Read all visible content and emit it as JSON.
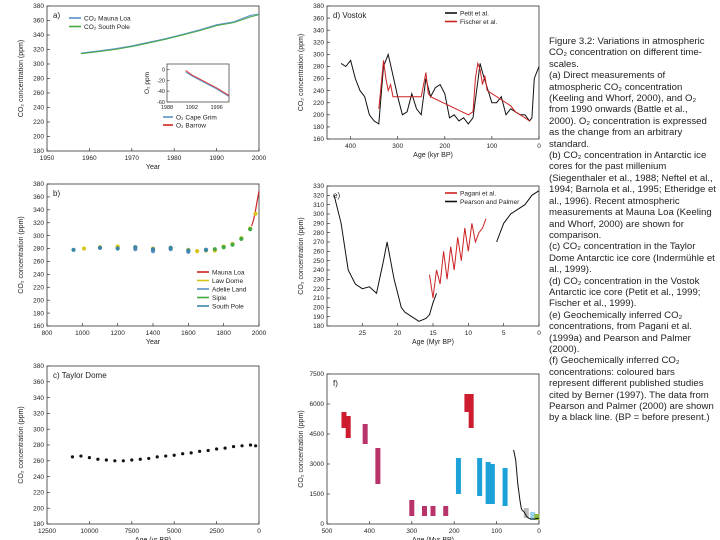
{
  "caption": [
    "Figure 3.2: Variations in atmospheric CO₂ concentration on different time-scales.",
    "(a) Direct measurements of atmospheric CO₂ concentration (Keeling and Whorf, 2000), and O₂ from 1990 onwards (Battle et al., 2000). O₂ concentration is expressed as the change from an arbitrary standard.",
    "(b) CO₂ concentration in Antarctic ice cores for the past millenium (Siegenthaler et al., 1988; Neftel et al., 1994; Barnola et al., 1995; Etheridge et al., 1996). Recent atmospheric measurements at Mauna Loa (Keeling and Whorf, 2000) are shown for comparison.",
    "(c) CO₂ concentration in the Taylor Dome Antarctic ice core (Indermühle et al., 1999).",
    "(d) CO₂ concentration in the Vostok Antarctic ice core (Petit et al., 1999; Fischer et al., 1999).",
    "(e) Geochemically inferred CO₂ concentrations, from Pagani et al. (1999a) and Pearson and Palmer (2000).",
    "(f) Geochemically inferred CO₂ concentrations: coloured bars represent different published studies cited by Berner (1997). The data from Pearson and Palmer (2000) are shown by a black line. (BP = before present.)"
  ],
  "chart_data": [
    {
      "panel": "a",
      "type": "line",
      "ylabel": "CO₂ concentration (ppm)",
      "xlabel": "Year",
      "xlim": [
        1950,
        2000
      ],
      "ylim": [
        180,
        380
      ],
      "xticks": [
        1950,
        1960,
        1970,
        1980,
        1990,
        2000
      ],
      "yticks": [
        180,
        200,
        220,
        240,
        260,
        280,
        300,
        320,
        340,
        360,
        380
      ],
      "series": [
        {
          "name": "CO₂ Mauna Loa",
          "color": "#5a8fc8",
          "x": [
            1958,
            1962,
            1966,
            1970,
            1974,
            1978,
            1982,
            1986,
            1990,
            1994,
            1998,
            2000
          ],
          "y": [
            315,
            318,
            321,
            325,
            330,
            335,
            341,
            347,
            354,
            358,
            367,
            369
          ]
        },
        {
          "name": "CO₂ South Pole",
          "color": "#44aa44",
          "x": [
            1958,
            1962,
            1966,
            1970,
            1974,
            1978,
            1982,
            1986,
            1990,
            1994,
            1998,
            2000
          ],
          "y": [
            314,
            317,
            320,
            324,
            329,
            334,
            340,
            346,
            353,
            357,
            365,
            368
          ]
        }
      ],
      "inset": {
        "ylabel": "O₂ ppm",
        "xticks": [
          1988,
          1992,
          1996
        ],
        "yticks": [
          0,
          -20,
          -40,
          -60
        ],
        "ylim": [
          -60,
          10
        ],
        "series": [
          {
            "name": "O₂ Cape Grim",
            "color": "#5a8fc8",
            "x": [
              1991,
              1992,
              1993,
              1994,
              1995,
              1996,
              1997,
              1998
            ],
            "y": [
              -5,
              -12,
              -18,
              -24,
              -30,
              -36,
              -43,
              -50
            ]
          },
          {
            "name": "O₂ Barrow",
            "color": "#cc2222",
            "x": [
              1991,
              1992,
              1993,
              1994,
              1995,
              1996,
              1997,
              1998
            ],
            "y": [
              -2,
              -10,
              -16,
              -22,
              -28,
              -34,
              -41,
              -48
            ]
          }
        ]
      }
    },
    {
      "panel": "b",
      "type": "scatter",
      "ylabel": "CO₂ concentration (ppm)",
      "xlabel": "Year",
      "xlim": [
        800,
        2000
      ],
      "ylim": [
        160,
        380
      ],
      "xticks": [
        800,
        1000,
        1200,
        1400,
        1600,
        1800,
        2000
      ],
      "yticks": [
        160,
        180,
        200,
        220,
        240,
        260,
        280,
        300,
        320,
        340,
        360,
        380
      ],
      "series": [
        {
          "name": "Mauna Loa",
          "color": "#cc2222",
          "x": [
            1958,
            1970,
            1980,
            1990,
            2000
          ],
          "y": [
            315,
            325,
            339,
            354,
            369
          ]
        },
        {
          "name": "Law Dome",
          "color": "#d7c419",
          "x": [
            1010,
            1100,
            1200,
            1300,
            1400,
            1500,
            1600,
            1650,
            1700,
            1750,
            1800,
            1850,
            1900,
            1950,
            1980
          ],
          "y": [
            280,
            282,
            283,
            282,
            280,
            281,
            278,
            276,
            277,
            277,
            283,
            287,
            296,
            311,
            334
          ]
        },
        {
          "name": "Adelie Land",
          "color": "#5a8fc8",
          "x": [
            1300,
            1400,
            1500,
            1600,
            1700
          ],
          "y": [
            279,
            276,
            279,
            275,
            278
          ]
        },
        {
          "name": "Siple",
          "color": "#44aa44",
          "x": [
            1750,
            1800,
            1850,
            1900,
            1950
          ],
          "y": [
            279,
            282,
            286,
            295,
            310
          ]
        },
        {
          "name": "South Pole",
          "color": "#3c86a8",
          "x": [
            950,
            1100,
            1200,
            1300,
            1400,
            1500,
            1600,
            1700
          ],
          "y": [
            278,
            281,
            280,
            282,
            279,
            281,
            277,
            278
          ]
        }
      ]
    },
    {
      "panel": "c",
      "title": "Taylor Dome",
      "type": "scatter",
      "ylabel": "CO₂ concentration (ppm)",
      "xlabel": "Age (yr BP)",
      "xlim": [
        12500,
        0
      ],
      "ylim": [
        180,
        380
      ],
      "xticks": [
        12500,
        10000,
        7500,
        5000,
        2500,
        0
      ],
      "yticks": [
        180,
        200,
        220,
        240,
        260,
        280,
        300,
        320,
        340,
        360,
        380
      ],
      "series": [
        {
          "name": "Taylor Dome",
          "color": "#111111",
          "x": [
            11000,
            10500,
            10000,
            9500,
            9000,
            8500,
            8000,
            7500,
            7000,
            6500,
            6000,
            5500,
            5000,
            4500,
            4000,
            3500,
            3000,
            2500,
            2000,
            1500,
            1000,
            500,
            200
          ],
          "y": [
            265,
            266,
            264,
            262,
            261,
            260,
            260,
            261,
            262,
            263,
            265,
            266,
            267,
            269,
            270,
            272,
            273,
            275,
            276,
            278,
            279,
            280,
            279
          ]
        }
      ]
    },
    {
      "panel": "d",
      "title": "Vostok",
      "type": "line",
      "ylabel": "CO₂ concentration (ppm)",
      "xlabel": "Age (kyr BP)",
      "xlim": [
        450,
        0
      ],
      "ylim": [
        160,
        380
      ],
      "xticks": [
        400,
        300,
        200,
        100,
        0
      ],
      "yticks": [
        160,
        180,
        200,
        220,
        240,
        260,
        280,
        300,
        320,
        340,
        360,
        380
      ],
      "series": [
        {
          "name": "Petit et al.",
          "color": "#111111",
          "x": [
            420,
            410,
            400,
            390,
            380,
            370,
            360,
            350,
            340,
            330,
            320,
            310,
            300,
            290,
            280,
            270,
            260,
            250,
            240,
            230,
            220,
            210,
            200,
            190,
            180,
            170,
            160,
            150,
            140,
            130,
            125,
            120,
            110,
            100,
            90,
            80,
            70,
            60,
            50,
            40,
            30,
            20,
            15,
            10,
            5,
            0
          ],
          "y": [
            285,
            280,
            290,
            260,
            240,
            230,
            200,
            190,
            185,
            280,
            300,
            265,
            230,
            200,
            205,
            235,
            210,
            200,
            260,
            230,
            245,
            250,
            235,
            195,
            200,
            190,
            195,
            185,
            195,
            255,
            285,
            270,
            245,
            220,
            220,
            230,
            200,
            210,
            205,
            200,
            200,
            190,
            195,
            260,
            270,
            280
          ]
        },
        {
          "name": "Fischer et al.",
          "color": "#cc2222",
          "x": [
            340,
            335,
            330,
            325,
            320,
            315,
            310,
            250,
            245,
            240,
            235,
            230,
            150,
            140,
            135,
            130,
            125,
            120,
            115,
            110,
            60,
            50,
            40,
            30,
            20
          ],
          "y": [
            210,
            250,
            290,
            260,
            240,
            250,
            230,
            230,
            250,
            270,
            235,
            230,
            200,
            205,
            260,
            285,
            275,
            250,
            265,
            240,
            215,
            205,
            200,
            195,
            190
          ]
        }
      ]
    },
    {
      "panel": "e",
      "type": "line",
      "ylabel": "CO₂ concentration (ppm)",
      "xlabel": "Age (Myr BP)",
      "xlim": [
        30,
        0
      ],
      "ylim": [
        180,
        330
      ],
      "xticks": [
        25,
        20,
        15,
        10,
        5,
        0
      ],
      "yticks": [
        180,
        190,
        200,
        210,
        220,
        230,
        240,
        250,
        260,
        270,
        280,
        290,
        300,
        310,
        320,
        330
      ],
      "series": [
        {
          "name": "Pagani et al.",
          "color": "#cc2222",
          "x": [
            15.5,
            15,
            14.5,
            14,
            13.5,
            13,
            12.5,
            12,
            11.5,
            11,
            10.5,
            10,
            9.5,
            9,
            8.5,
            8,
            7.5
          ],
          "y": [
            235,
            210,
            240,
            225,
            260,
            230,
            265,
            240,
            275,
            250,
            285,
            260,
            290,
            270,
            280,
            285,
            295
          ]
        },
        {
          "name": "Pearson and Palmer",
          "color": "#111111",
          "x": [
            29,
            28,
            27,
            26,
            25,
            24,
            23,
            22,
            21.5,
            21,
            20.5,
            20,
            19.5,
            19,
            18,
            17,
            16,
            15.5,
            15,
            14.5
          ],
          "y": [
            320,
            290,
            240,
            225,
            220,
            222,
            215,
            250,
            270,
            250,
            230,
            215,
            200,
            195,
            190,
            185,
            188,
            192,
            205,
            215
          ]
        },
        {
          "name": "",
          "color": "#111111",
          "x": [
            6,
            5,
            4,
            3,
            2,
            1,
            0
          ],
          "y": [
            270,
            290,
            300,
            305,
            310,
            320,
            325
          ]
        }
      ]
    },
    {
      "panel": "f",
      "type": "bar-range",
      "ylabel": "CO₂ concentration (ppm)",
      "xlabel": "Age (Myr BP)",
      "xlim": [
        500,
        0
      ],
      "ylim": [
        0,
        7500
      ],
      "xticks": [
        500,
        400,
        300,
        200,
        100,
        0
      ],
      "yticks": [
        0,
        1500,
        3000,
        4500,
        6000,
        7500
      ],
      "bars": [
        {
          "x": 460,
          "low": 4800,
          "high": 5600,
          "color": "#cc1c2e"
        },
        {
          "x": 450,
          "low": 4300,
          "high": 5400,
          "color": "#cc1c2e"
        },
        {
          "x": 410,
          "low": 4000,
          "high": 5000,
          "color": "#b8336a"
        },
        {
          "x": 380,
          "low": 2000,
          "high": 3800,
          "color": "#b8336a"
        },
        {
          "x": 300,
          "low": 400,
          "high": 1200,
          "color": "#b8336a"
        },
        {
          "x": 270,
          "low": 400,
          "high": 900,
          "color": "#b8336a"
        },
        {
          "x": 250,
          "low": 400,
          "high": 900,
          "color": "#b8336a"
        },
        {
          "x": 220,
          "low": 400,
          "high": 900,
          "color": "#b8336a"
        },
        {
          "x": 190,
          "low": 1500,
          "high": 3300,
          "color": "#1ca1d8"
        },
        {
          "x": 140,
          "low": 1400,
          "high": 3300,
          "color": "#1ca1d8"
        },
        {
          "x": 120,
          "low": 1000,
          "high": 3100,
          "color": "#1ca1d8"
        },
        {
          "x": 110,
          "low": 1000,
          "high": 3000,
          "color": "#1ca1d8"
        },
        {
          "x": 80,
          "low": 900,
          "high": 2800,
          "color": "#1ca1d8"
        },
        {
          "x": 170,
          "low": 5600,
          "high": 6500,
          "color": "#cc1c2e"
        },
        {
          "x": 160,
          "low": 4800,
          "high": 6500,
          "color": "#cc1c2e"
        },
        {
          "x": 30,
          "low": 300,
          "high": 800,
          "color": "#bbbbbb"
        },
        {
          "x": 15,
          "low": 200,
          "high": 600,
          "color": "#9ad4ec"
        },
        {
          "x": 5,
          "low": 200,
          "high": 500,
          "color": "#8db83c"
        }
      ],
      "series": [
        {
          "name": "",
          "color": "#111111",
          "x": [
            60,
            55,
            50,
            45,
            42,
            40,
            35,
            30,
            25,
            20,
            10,
            0
          ],
          "y": [
            3700,
            3200,
            2000,
            1200,
            800,
            700,
            600,
            400,
            300,
            250,
            250,
            300
          ]
        }
      ]
    }
  ]
}
